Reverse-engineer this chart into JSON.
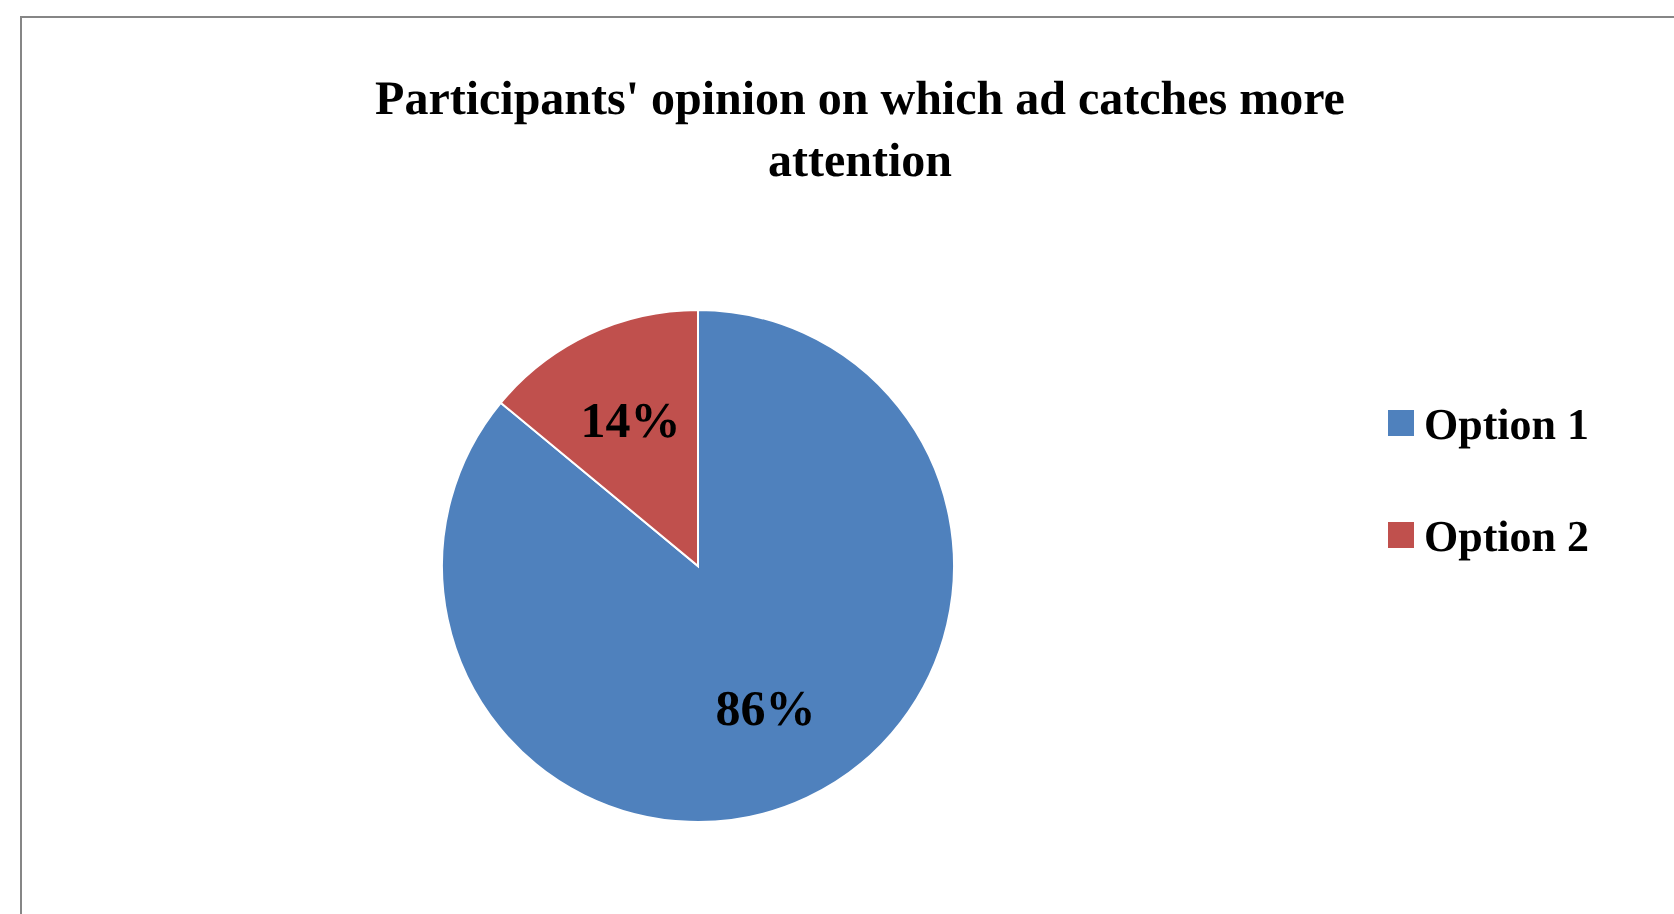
{
  "chart_data": {
    "type": "pie",
    "title": "Participants' opinion on which ad catches more attention",
    "categories": [
      "Option 1",
      "Option 2"
    ],
    "values": [
      86,
      14
    ],
    "colors": [
      "#4f81bd",
      "#c0504d"
    ],
    "value_labels": [
      "86%",
      "14%"
    ],
    "legend": "right"
  }
}
